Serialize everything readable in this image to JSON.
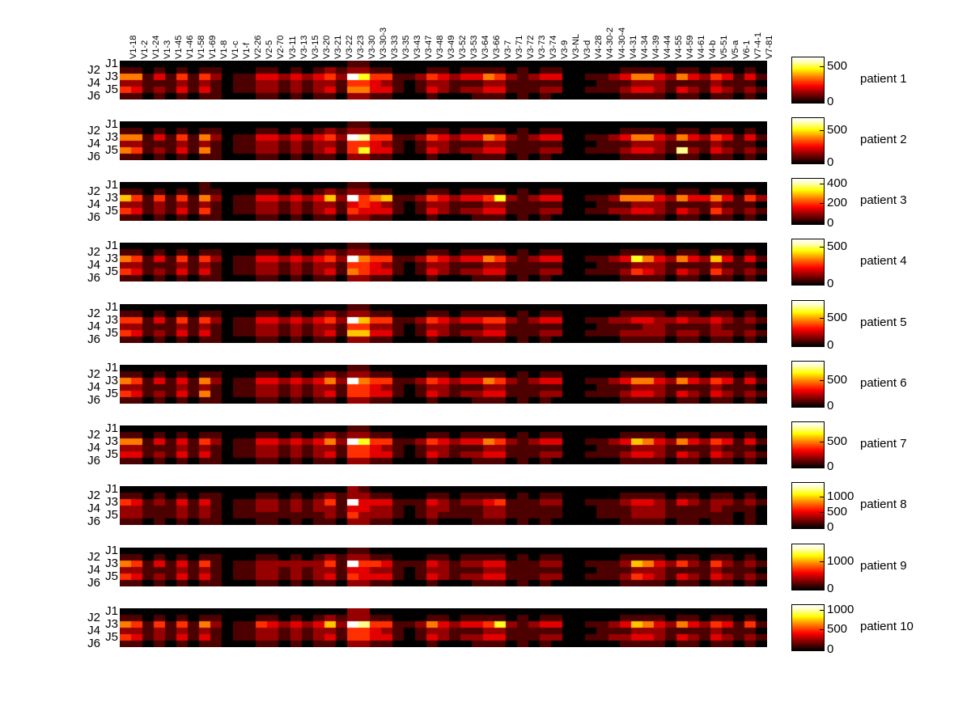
{
  "figure": {
    "background": "#ffffff",
    "text_color": "#000000"
  },
  "colors": {
    "colormap_low": "#000000",
    "colormap_mid": "#ff0000",
    "colormap_high": "#ffff00",
    "colormap_max": "#ffffff"
  },
  "chart_data": {
    "type": "heatmap",
    "colormap": "hot",
    "intensity_scale": "relative intensity digits 0-9 per cell; 9 = colorbar maximum (white), 0 = black",
    "columns": [
      "V1-18",
      "V1-2",
      "V1-24",
      "V1-3",
      "V1-45",
      "V1-46",
      "V1-58",
      "V1-69",
      "V1-8",
      "V1-c",
      "V1-f",
      "V2-26",
      "V2-5",
      "V2-70",
      "V3-11",
      "V3-13",
      "V3-15",
      "V3-20",
      "V3-21",
      "V3-22",
      "V3-23",
      "V3-30",
      "V3-30-3",
      "V3-33",
      "V3-35",
      "V3-43",
      "V3-47",
      "V3-48",
      "V3-49",
      "V3-52",
      "V3-53",
      "V3-64",
      "V3-66",
      "V3-7",
      "V3-71",
      "V3-72",
      "V3-73",
      "V3-74",
      "V3-9",
      "V3-NL",
      "V3-d",
      "V4-28",
      "V4-30-2",
      "V4-30-4",
      "V4-31",
      "V4-34",
      "V4-39",
      "V4-44",
      "V4-55",
      "V4-59",
      "V4-61",
      "V4-b",
      "V5-51",
      "V5-a",
      "V6-1",
      "V7-4-1",
      "V7-81"
    ],
    "rows": [
      "J1",
      "J2",
      "J3",
      "J4",
      "J5",
      "J6"
    ],
    "row_label_columns": {
      "inner": [
        "J1",
        "J3",
        "J5"
      ],
      "outer": [
        "J2",
        "J4",
        "J6"
      ]
    },
    "patients": [
      {
        "label": "patient 1",
        "colorbar_ticks": [
          {
            "label": "500",
            "pos": 0.22
          },
          {
            "label": "0",
            "pos": 1.0
          }
        ],
        "values": {
          "J1": "000000000000000000001100000000000000000000000000000000000",
          "J2": "110101011000110101212211000110111101011000001111011011010",
          "J3": "551314142011332323429744112432335421233001123553253243131",
          "J4": "221112121011221212214432101221112211111000111222111121110",
          "J5": "431213131011221212315533101321223311122001112332132132121",
          "J6": "110101011000110101102211000100011101010000001111011011010"
        }
      },
      {
        "label": "patient 2",
        "colorbar_ticks": [
          {
            "label": "500",
            "pos": 0.28
          },
          {
            "label": "0",
            "pos": 1.0
          }
        ],
        "values": {
          "J1": "000000000000000000001100000000000000000000000000000000000",
          "J2": "110101011000110101212211000110111101011000001111011011010",
          "J3": "551314152011332323429844112432335421233001123553253243131",
          "J4": "221112121011221212214432101221112211111000111222111121110",
          "J5": "541213151011221212314733101321223311122001112332182132121",
          "J6": "110101011000110101102211000100011101010000001111011011010"
        }
      },
      {
        "label": "patient 3",
        "colorbar_ticks": [
          {
            "label": "400",
            "pos": 0.12
          },
          {
            "label": "200",
            "pos": 0.55
          },
          {
            "label": "0",
            "pos": 1.0
          }
        ],
        "values": {
          "J1": "000000010000000000001100000000000000000000000000000000000",
          "J2": "110101011000110101212211000110111101011000001111011011010",
          "J3": "641414152011332323629456112432334721233001125553253353142",
          "J4": "221212121011221212213432101221112211111000111222111121110",
          "J5": "431213141011221212314333101321223311122001122332132142121",
          "J6": "110101011000110101102211000100011101010000001111011011010"
        }
      },
      {
        "label": "patient 4",
        "colorbar_ticks": [
          {
            "label": "500",
            "pos": 0.18
          },
          {
            "label": "0",
            "pos": 1.0
          }
        ],
        "values": {
          "J1": "000000000000000000001100000000000000000000000000000000000",
          "J2": "110101011000110101212211000110111101011000001111011011010",
          "J3": "541314142011332323429544112432335421233001123753253263131",
          "J4": "221112121011221212214432101221112211111000111222111121110",
          "J5": "431213131011221212315433101321223311122001112432132142121",
          "J6": "110101011000110101102211000100011101010000001111011011010"
        }
      },
      {
        "label": "patient 5",
        "colorbar_ticks": [
          {
            "label": "500",
            "pos": 0.4
          },
          {
            "label": "0",
            "pos": 1.0
          }
        ],
        "values": {
          "J1": "000000000000000000001100000000000000000000000000000000000",
          "J2": "110101011000110101212211000110111101011000001111011011010",
          "J3": "441314142011332323429644112432334421233001122332232232121",
          "J4": "221112121011221212214422101221112211111000111122111121110",
          "J5": "431213131011221212316633101321223311122001112222122122121",
          "J6": "110101011000110101102211000100011101010000001111011011010"
        }
      },
      {
        "label": "patient 6",
        "colorbar_ticks": [
          {
            "label": "500",
            "pos": 0.42
          },
          {
            "label": "0",
            "pos": 1.0
          }
        ],
        "values": {
          "J1": "000000000000000000001100000000000000000000000000000000000",
          "J2": "110101011000110101212211000110111101011000001111011011010",
          "J3": "541313152011332323529544112432335421233001123553253243131",
          "J4": "221112121011221212214432101221112211111000111222111121110",
          "J5": "431213151011221212314433101321223311122001112332132132121",
          "J6": "110101011000110101102211000100011101010000001111011011010"
        }
      },
      {
        "label": "patient 7",
        "colorbar_ticks": [
          {
            "label": "500",
            "pos": 0.45
          },
          {
            "label": "0",
            "pos": 1.0
          }
        ],
        "values": {
          "J1": "000000000000000000001100000000000000000000000000000000000",
          "J2": "110101011000110101212211000110111101011000001111011011010",
          "J3": "551313142011332323529744112432335421233001123653253243131",
          "J4": "221112121011221212214432101221112211111000111222111121110",
          "J5": "331213131011221212314433101321223311122001112332132132121",
          "J6": "110101011000110101102211000100011101010000001111011011010"
        }
      },
      {
        "label": "patient 8",
        "colorbar_ticks": [
          {
            "label": "1000",
            "pos": 0.33
          },
          {
            "label": "500",
            "pos": 0.66
          },
          {
            "label": "0",
            "pos": 1.0
          }
        ],
        "values": {
          "J1": "000000000000000000002100000000000000000000000000000000000",
          "J2": "110101011000110101212211000110111101011000001111011011010",
          "J3": "431213131011221212419333111321223411122001112332132122121",
          "J4": "221112121011221212213322101221112211111000111222111121110",
          "J5": "221112121011111111214222101211112211111000111222111111010",
          "J6": "110101011000110101102211000100011101010000001111011011010"
        }
      },
      {
        "label": "patient 9",
        "colorbar_ticks": [
          {
            "label": "1000",
            "pos": 0.4
          },
          {
            "label": "0",
            "pos": 1.0
          }
        ],
        "values": {
          "J1": "000000000000000000001100000000000000000000000000000000000",
          "J2": "110101011000110101212211000110111101011000001111011011010",
          "J3": "541313141011222222419443111321223311122001112653242142121",
          "J4": "221112121011221212213322101221112211111000111222111121110",
          "J5": "431213131011221212314333101321223311122001112432132132121",
          "J6": "110101011000110101102211000100011101010000001111011011010"
        }
      },
      {
        "label": "patient 10",
        "colorbar_ticks": [
          {
            "label": "1000",
            "pos": 0.13
          },
          {
            "label": "500",
            "pos": 0.56
          },
          {
            "label": "0",
            "pos": 1.0
          }
        ],
        "values": {
          "J1": "000000000000000000002200000000000000000000000000000000000",
          "J2": "110101011000110101212211000110111101011000001111011011010",
          "J3": "541414152011432323629844112532334721233001123653253243141",
          "J4": "221212121011221212214432101221112211111000111222111121110",
          "J5": "431213131011221212314433101321223311122001122332132132121",
          "J6": "110101011000110101102211000100011101010000001111011011010"
        }
      }
    ]
  }
}
